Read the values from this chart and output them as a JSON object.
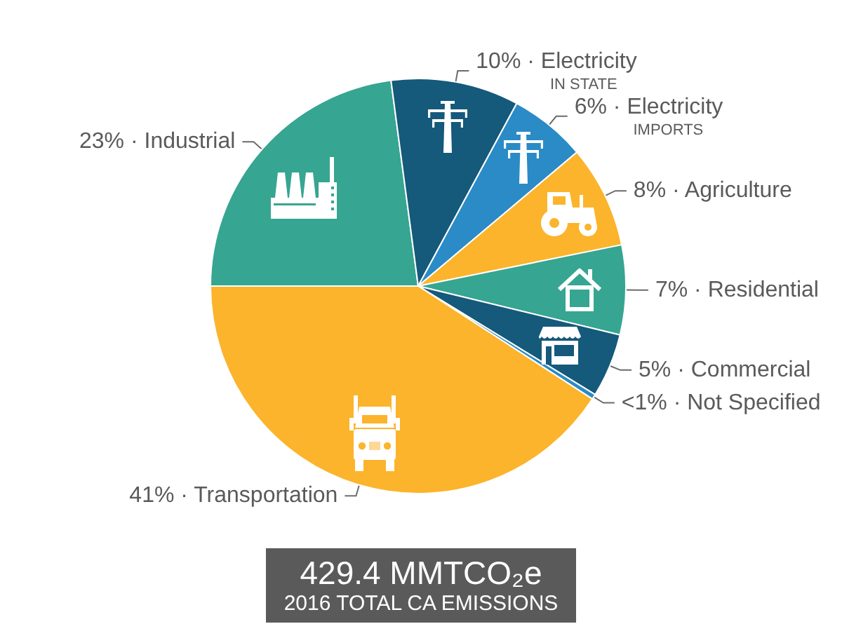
{
  "chart_data": {
    "type": "pie",
    "title": "429.4 MMTCO₂e",
    "subtitle": "2016 TOTAL CA EMISSIONS",
    "categories": [
      "Industrial",
      "Electricity\nIN STATE",
      "Electricity\nIMPORTS",
      "Agriculture",
      "Residential",
      "Commercial",
      "Not Specified",
      "Transportation"
    ],
    "values": [
      23,
      10,
      6,
      8,
      7,
      5,
      0.4,
      41
    ],
    "value_labels": [
      "23% ·",
      "10% ·",
      "6% ·",
      "8% ·",
      "7% ·",
      "5% ·",
      "<1% ·",
      "41% ·"
    ],
    "colors": [
      "#36a591",
      "#15597b",
      "#2a8bc6",
      "#fbb42b",
      "#36a591",
      "#15597b",
      "#2a8bc6",
      "#fbb42b"
    ]
  }
}
